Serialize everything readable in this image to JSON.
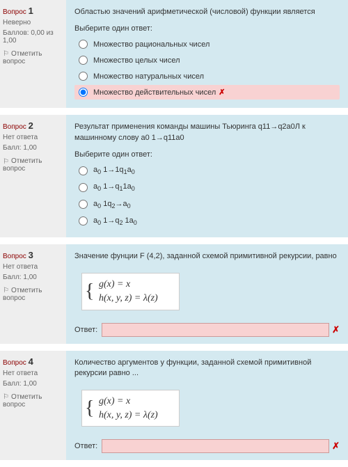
{
  "label_question": "Вопрос",
  "label_choose": "Выберите один ответ:",
  "label_flag": "Отметить вопрос",
  "label_answer": "Ответ:",
  "status_wrong": "Неверно",
  "status_noanswer": "Нет ответа",
  "q1": {
    "num": "1",
    "points": "Баллов: 0,00 из 1,00",
    "prompt": "Областью значений арифметической (числовой) функции является",
    "opt1": "Множество рациональных чисел",
    "opt2": "Множество целых чисел",
    "opt3": "Множество натуральных чисел",
    "opt4": "Множество действительных чисел"
  },
  "q2": {
    "num": "2",
    "points": "Балл: 1,00",
    "prompt": "Результат применения команды машины Тьюринга q11→q2a0Л к машинному слову a0 1→q11a0"
  },
  "q3": {
    "num": "3",
    "points": "Балл: 1,00",
    "prompt": "Значение фунции F (4,2), заданной схемой примитивной рекурсии, равно",
    "formula1": "g(x) = x",
    "formula2": "h(x, y, z) = λ(z)"
  },
  "q4": {
    "num": "4",
    "points": "Балл: 1,00",
    "prompt": "Количество аргументов у функции, заданной схемой примитивной рекурсии равно ...",
    "formula1": "g(x) = x",
    "formula2": "h(x, y, z) = λ(z)"
  },
  "colors": {
    "content_bg": "#d4e9f0",
    "sidebar_bg": "#eee",
    "wrong_bg": "#f8d2d2",
    "wrong_x": "#c00"
  }
}
